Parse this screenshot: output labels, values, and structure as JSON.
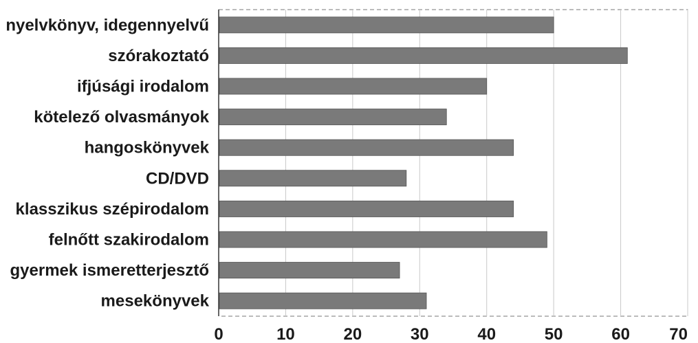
{
  "chart_data": {
    "type": "bar",
    "orientation": "horizontal",
    "categories": [
      "nyelvkönyv, idegennyelvű",
      "szórakoztató",
      "ifjúsági irodalom",
      "kötelező olvasmányok",
      "hangoskönyvek",
      "CD/DVD",
      "klasszikus szépirodalom",
      "felnőtt szakirodalom",
      "gyermek ismeretterjesztő",
      "mesekönyvek"
    ],
    "values": [
      50,
      61,
      40,
      34,
      44,
      28,
      44,
      49,
      27,
      31
    ],
    "xlim": [
      0,
      70
    ],
    "xticks": [
      "0",
      "10",
      "20",
      "30",
      "40",
      "50",
      "60",
      "70"
    ],
    "grid": true,
    "bar_color": "#7a7a7a"
  }
}
